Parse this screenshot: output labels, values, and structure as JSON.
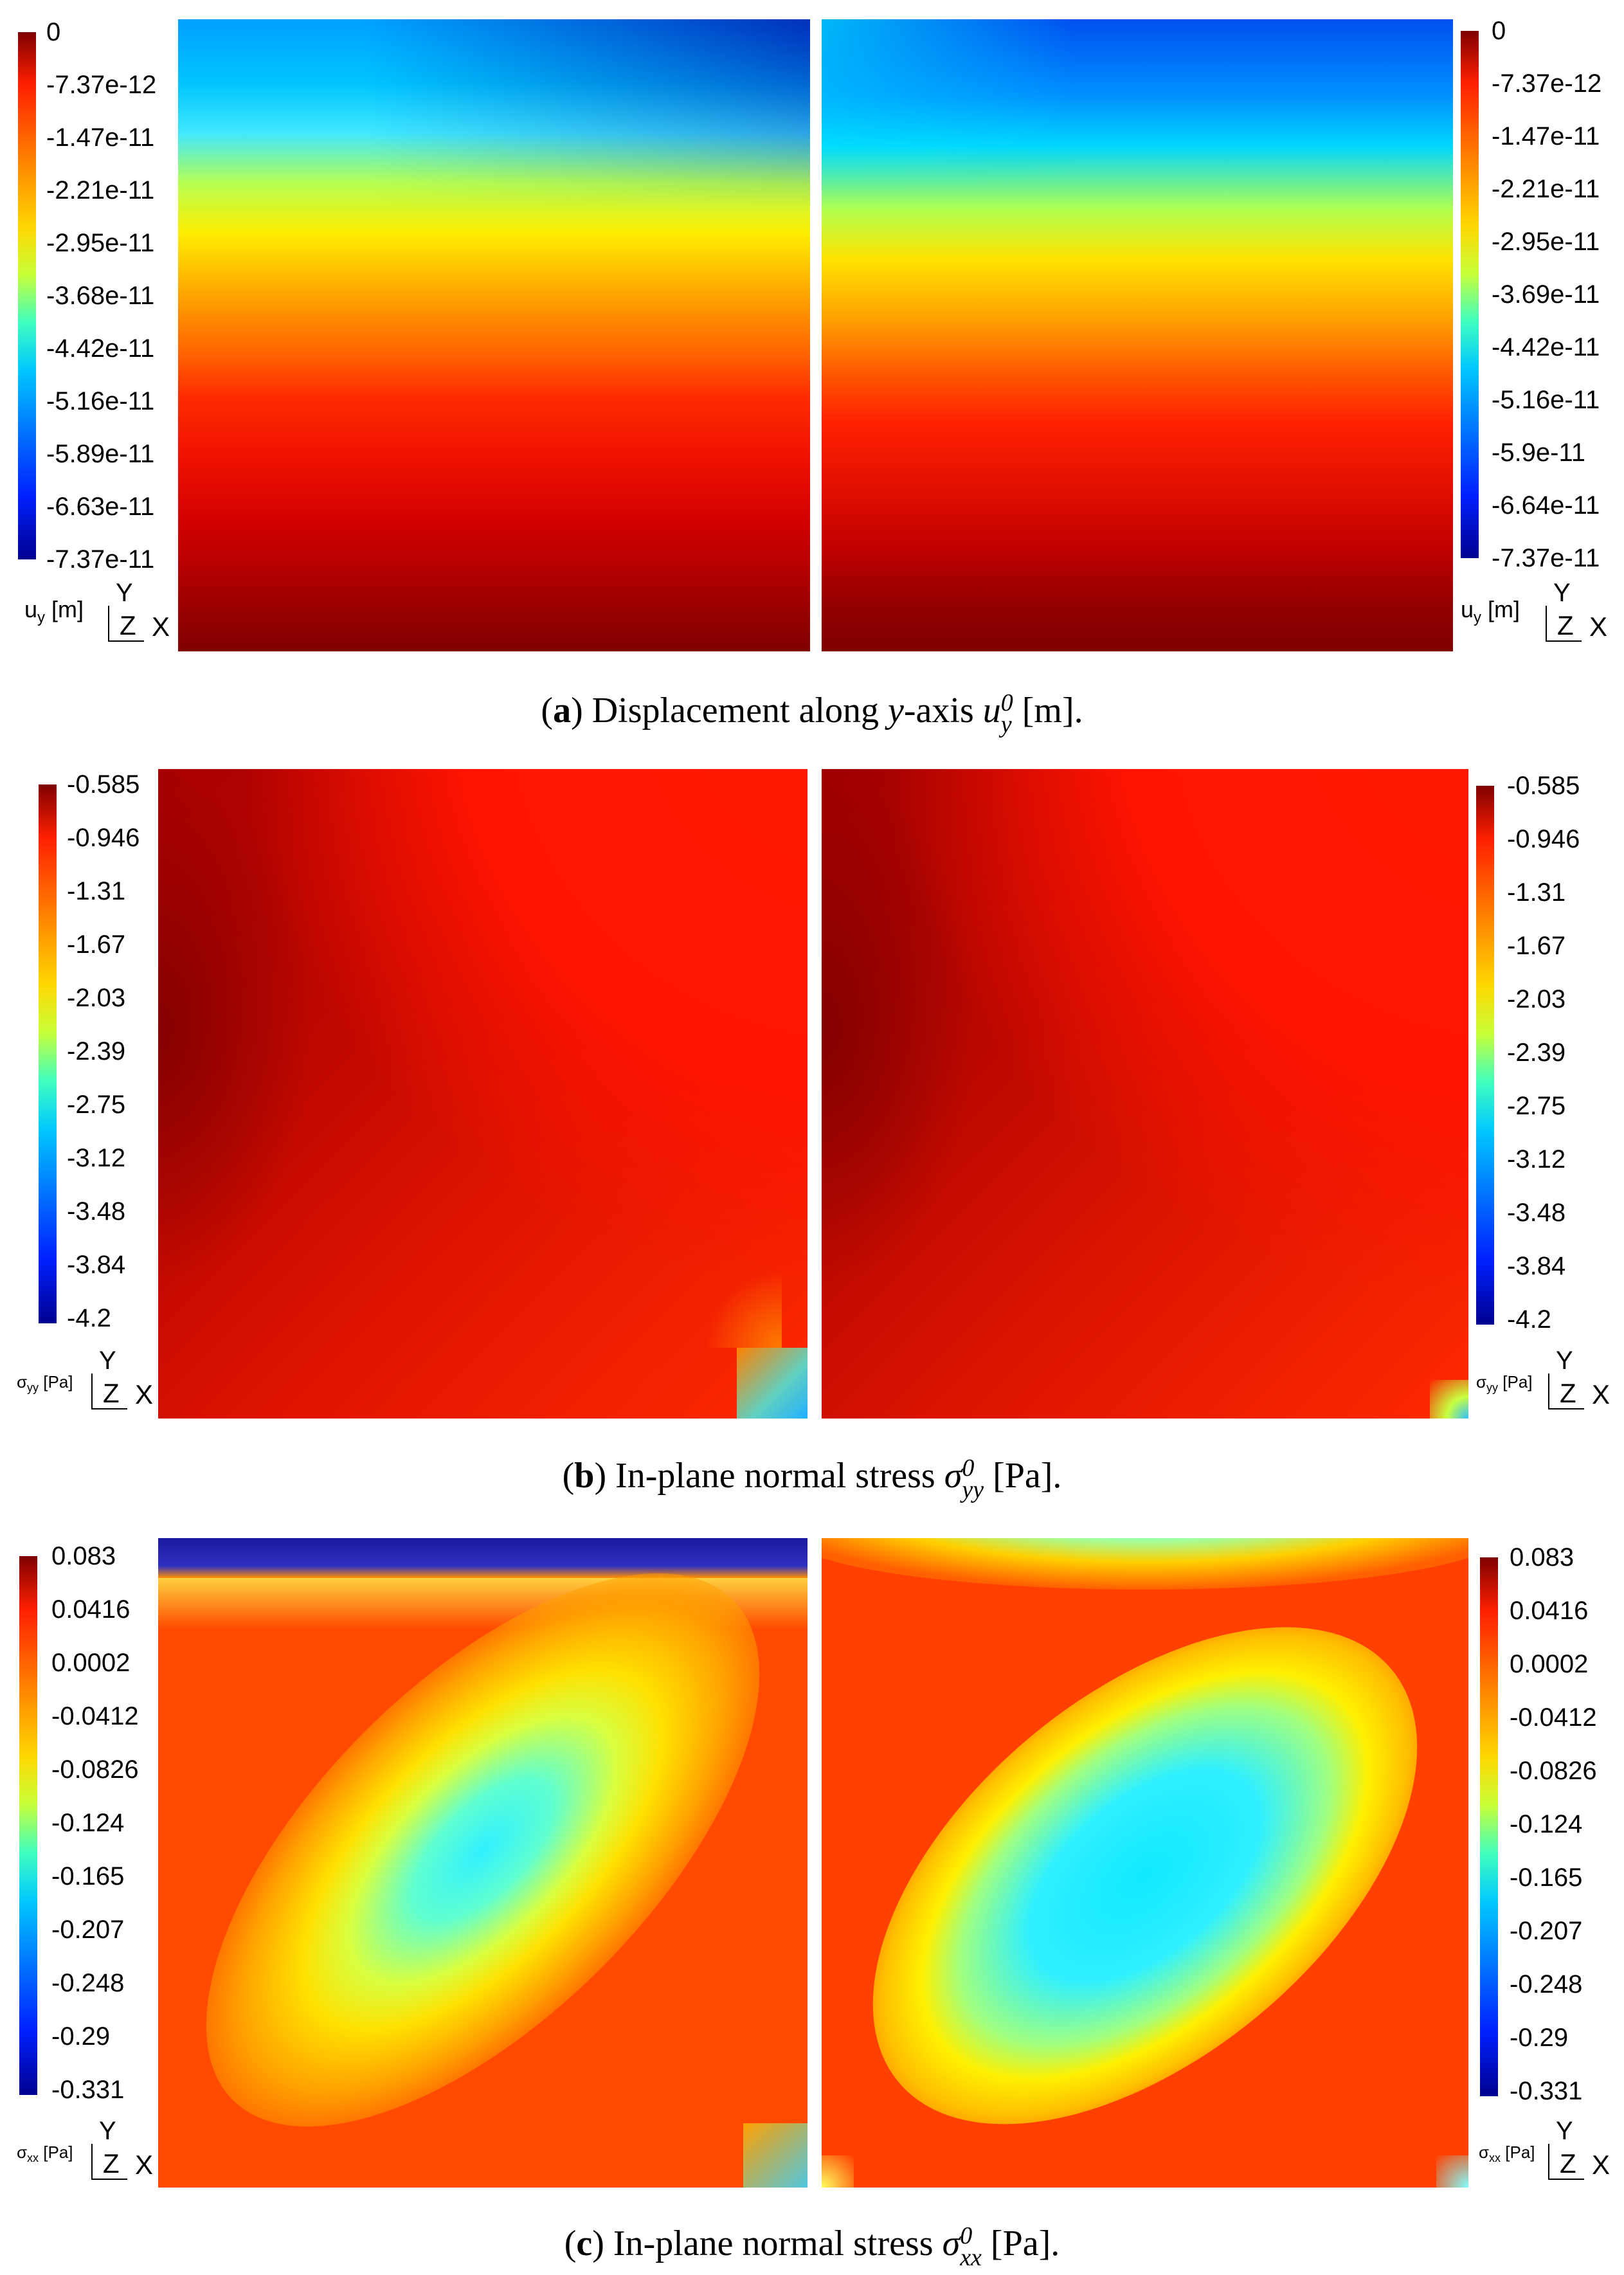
{
  "panels": [
    {
      "id": "a",
      "caption": {
        "letter": "a",
        "text": "Displacement along y-axis u_y^0 [m]."
      },
      "left_scale": {
        "ticks": [
          "0",
          "-7.37e-12",
          "-1.47e-11",
          "-2.21e-11",
          "-2.95e-11",
          "-3.68e-11",
          "-4.42e-11",
          "-5.16e-11",
          "-5.89e-11",
          "-6.63e-11",
          "-7.37e-11"
        ]
      },
      "right_scale": {
        "ticks": [
          "0",
          "-7.37e-12",
          "-1.47e-11",
          "-2.21e-11",
          "-2.95e-11",
          "-3.69e-11",
          "-4.42e-11",
          "-5.16e-11",
          "-5.9e-11",
          "-6.64e-11",
          "-7.37e-11"
        ]
      },
      "variable_label": "u",
      "variable_sub": "y",
      "variable_unit": "[m]"
    },
    {
      "id": "b",
      "caption": {
        "letter": "b",
        "text": "In-plane normal stress σ_yy^0 [Pa]."
      },
      "left_scale": {
        "ticks": [
          "-0.585",
          "-0.946",
          "-1.31",
          "-1.67",
          "-2.03",
          "-2.39",
          "-2.75",
          "-3.12",
          "-3.48",
          "-3.84",
          "-4.2"
        ]
      },
      "right_scale": {
        "ticks": [
          "-0.585",
          "-0.946",
          "-1.31",
          "-1.67",
          "-2.03",
          "-2.39",
          "-2.75",
          "-3.12",
          "-3.48",
          "-3.84",
          "-4.2"
        ]
      },
      "variable_label": "σ",
      "variable_sub": "yy",
      "variable_unit": "[Pa]"
    },
    {
      "id": "c",
      "caption": {
        "letter": "c",
        "text": "In-plane normal stress σ_xx^0 [Pa]."
      },
      "left_scale": {
        "ticks": [
          "0.083",
          "0.0416",
          "0.0002",
          "-0.0412",
          "-0.0826",
          "-0.124",
          "-0.165",
          "-0.207",
          "-0.248",
          "-0.29",
          "-0.331"
        ]
      },
      "right_scale": {
        "ticks": [
          "0.083",
          "0.0416",
          "0.0002",
          "-0.0412",
          "-0.0826",
          "-0.124",
          "-0.165",
          "-0.207",
          "-0.248",
          "-0.29",
          "-0.331"
        ]
      },
      "variable_label": "σ",
      "variable_sub": "xx",
      "variable_unit": "[Pa]"
    }
  ],
  "axes_triad": {
    "y": "Y",
    "z": "Z",
    "x": "X"
  },
  "captions": {
    "a": {
      "letter": "a",
      "pre": ") Displacement along ",
      "var": "y",
      "mid": "-axis ",
      "sym": "u",
      "sub": "y",
      "sup": "0",
      "post": " [m]."
    },
    "b": {
      "letter": "b",
      "pre": ") In-plane normal stress ",
      "sym": "σ",
      "sub": "yy",
      "sup": "0",
      "post": " [Pa]."
    },
    "c": {
      "letter": "c",
      "pre": ") In-plane normal stress ",
      "sym": "σ",
      "sub": "xx",
      "sup": "0",
      "post": " [Pa]."
    }
  },
  "colormap": [
    "#7f0000",
    "#ff2000",
    "#ff8000",
    "#ffd700",
    "#c8ff38",
    "#40ffbf",
    "#00c8ff",
    "#0080ff",
    "#0020ff",
    "#00008f"
  ]
}
